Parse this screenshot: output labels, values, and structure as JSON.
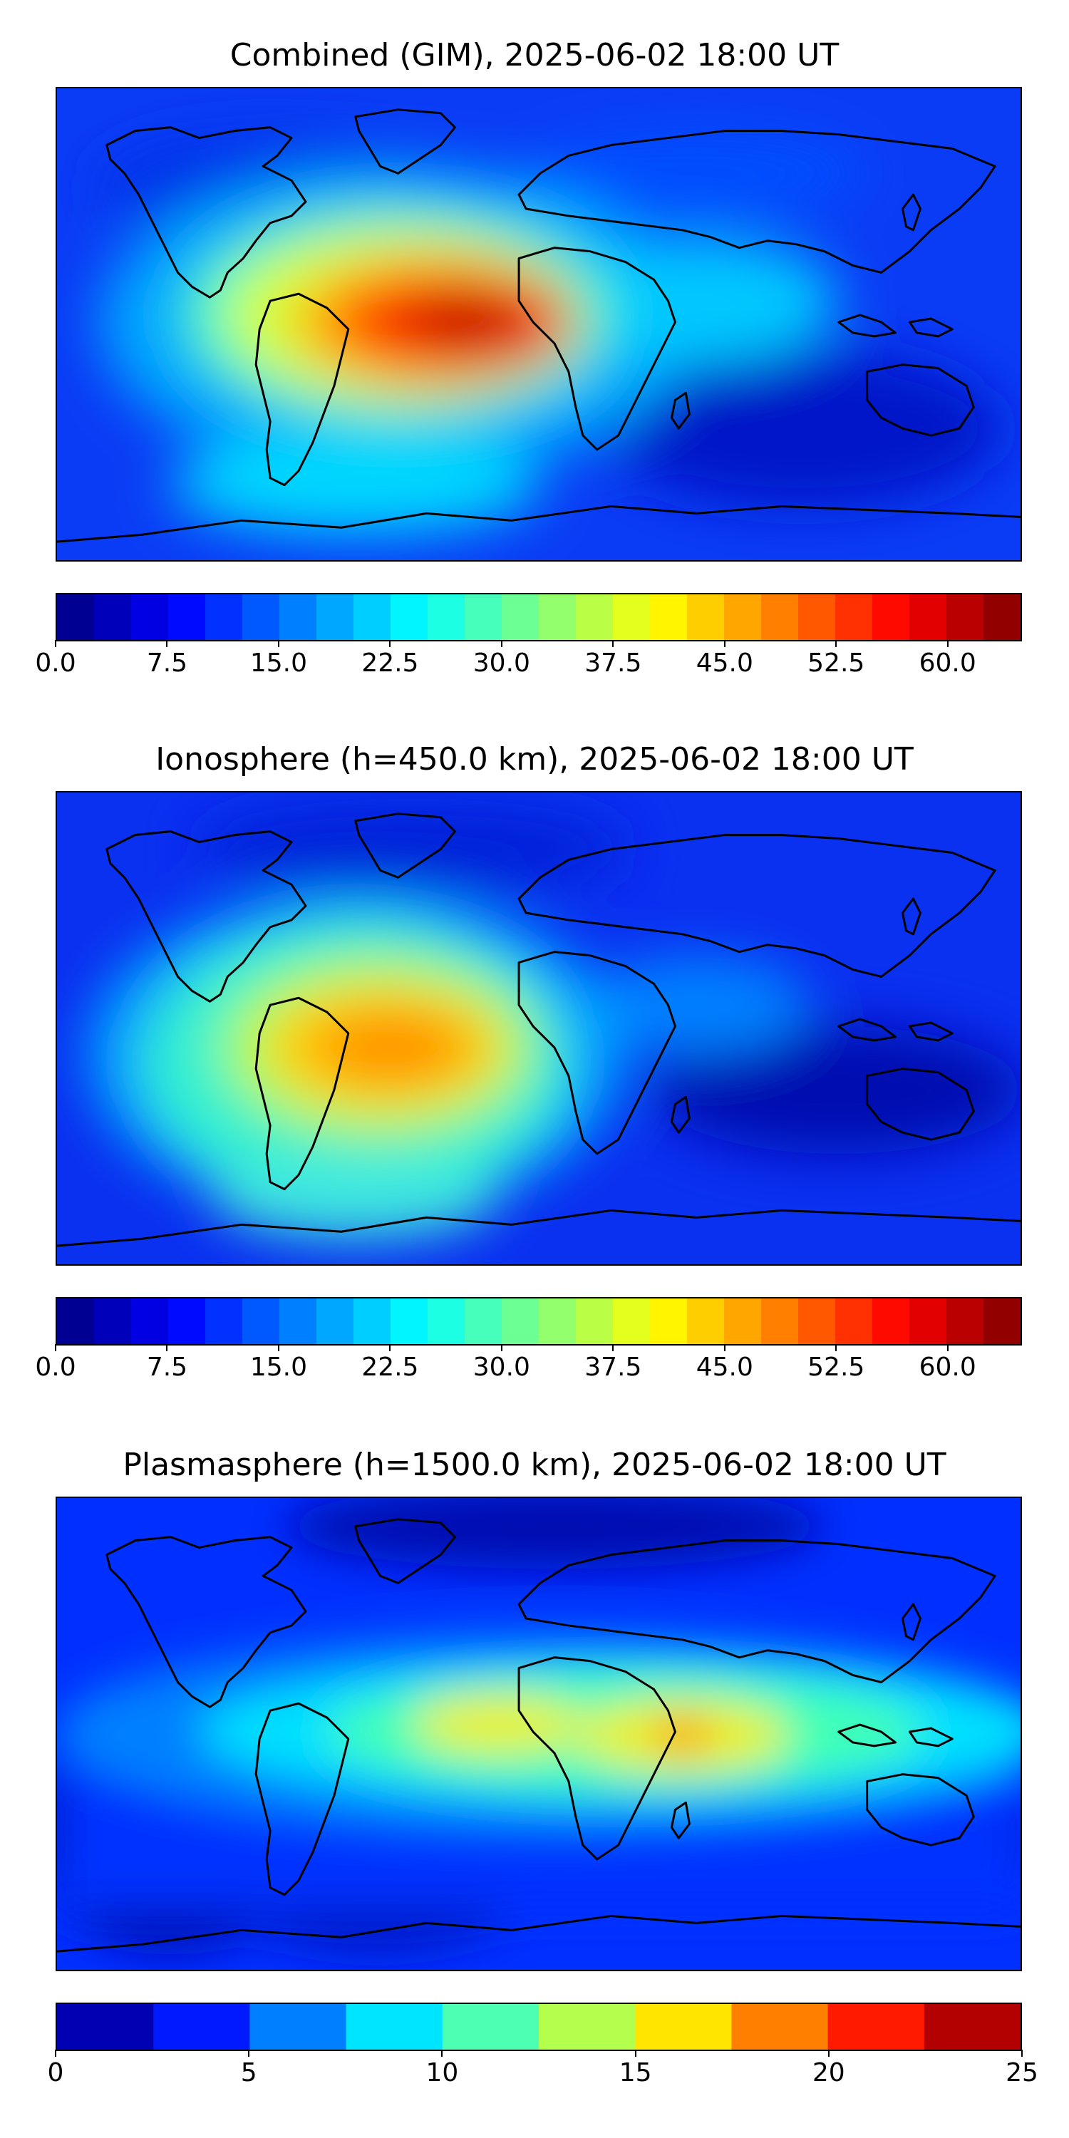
{
  "panels": [
    {
      "title": "Combined (GIM), 2025-06-02 18:00 UT",
      "colorbar": {
        "min": 0,
        "max": 65,
        "step": 2.5,
        "ticks": [
          "0.0",
          "7.5",
          "15.0",
          "22.5",
          "30.0",
          "37.5",
          "45.0",
          "52.5",
          "60.0"
        ]
      }
    },
    {
      "title": "Ionosphere  (h=450.0 km), 2025-06-02 18:00 UT",
      "colorbar": {
        "min": 0,
        "max": 65,
        "step": 2.5,
        "ticks": [
          "0.0",
          "7.5",
          "15.0",
          "22.5",
          "30.0",
          "37.5",
          "45.0",
          "52.5",
          "60.0"
        ]
      }
    },
    {
      "title": "Plasmasphere (h=1500.0 km), 2025-06-02 18:00 UT",
      "colorbar": {
        "min": 0,
        "max": 25,
        "step": 2.5,
        "ticks": [
          "0",
          "5",
          "10",
          "15",
          "20",
          "25"
        ]
      }
    }
  ],
  "colors": {
    "jet_dark": "#00007f",
    "jet_blue": "#0000ff",
    "jet_cyan": "#00e5ff",
    "jet_yellow": "#f5f500",
    "jet_red": "#ff2000",
    "jet_darkred": "#800000",
    "coastline": "#000000"
  }
}
